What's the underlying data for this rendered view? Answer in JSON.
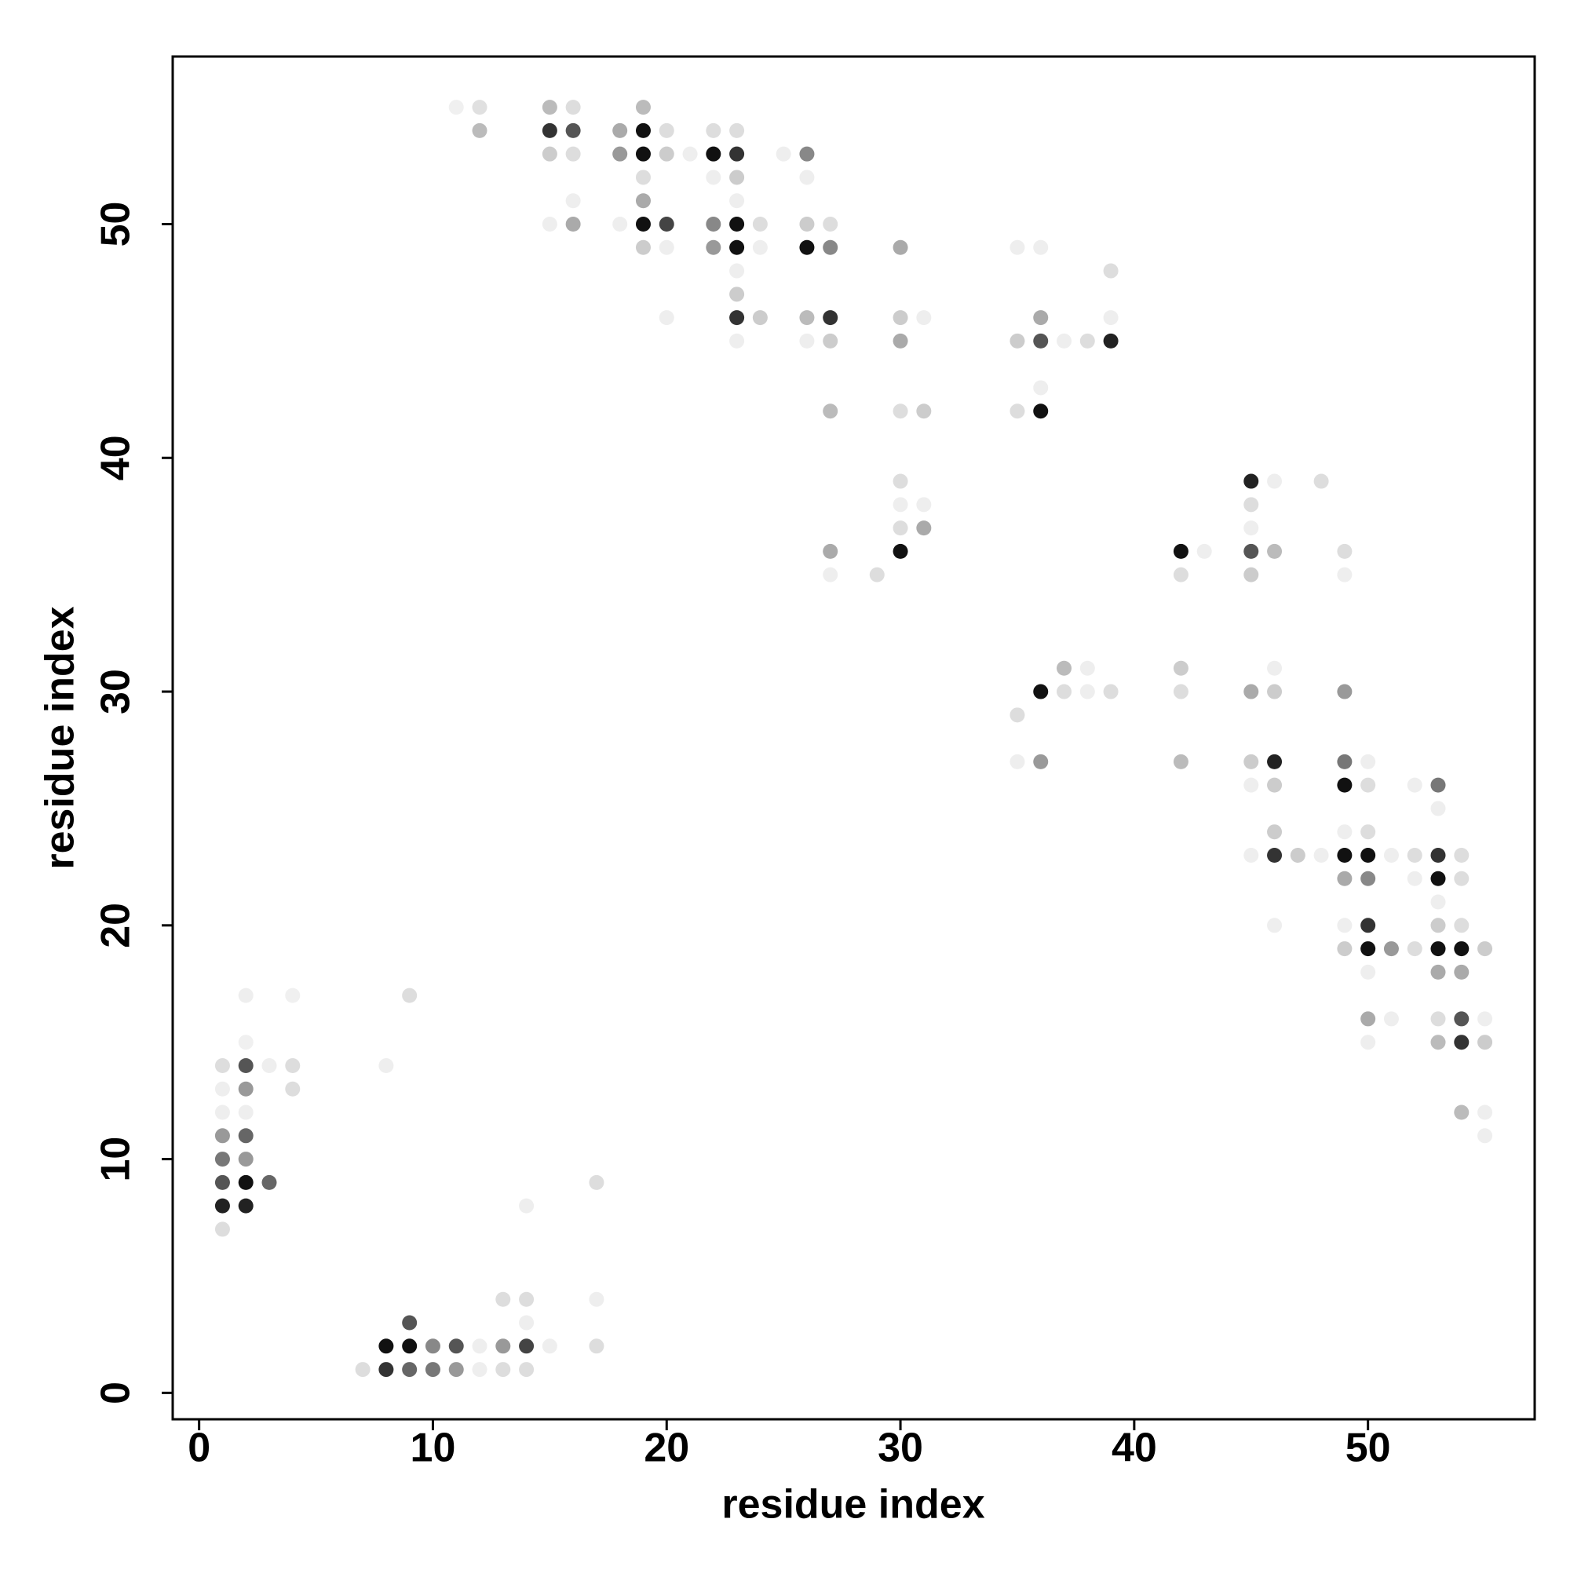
{
  "chart_data": {
    "type": "scatter",
    "xlabel": "residue index",
    "ylabel": "residue index",
    "xlim": [
      -1.13,
      57.13
    ],
    "ylim": [
      -1.13,
      57.17
    ],
    "xticks": [
      0,
      10,
      20,
      30,
      40,
      50
    ],
    "yticks": [
      0,
      10,
      20,
      30,
      40,
      50
    ],
    "series": [
      {
        "x": [
          11,
          12,
          15,
          16,
          19,
          12,
          15,
          16,
          18,
          19,
          20,
          22,
          23,
          15,
          16,
          18,
          19,
          20,
          21,
          22,
          23,
          25,
          26,
          19,
          22,
          23,
          26,
          16,
          19,
          23,
          15,
          16,
          18,
          19,
          20,
          22,
          23,
          24,
          26,
          27,
          19,
          20,
          22,
          23,
          24,
          26,
          27,
          30,
          35,
          36,
          23,
          39,
          23,
          20,
          23,
          24,
          26,
          27,
          30,
          31,
          36,
          39,
          23,
          26,
          27,
          30,
          35,
          36,
          37,
          38,
          39,
          36,
          27,
          30,
          31,
          35,
          36,
          30,
          45,
          46,
          48,
          30,
          31,
          45,
          30,
          31,
          45,
          27,
          30,
          42,
          43,
          45,
          46,
          49,
          27,
          29,
          42,
          45,
          49,
          37,
          38,
          42,
          46,
          36,
          37,
          38,
          39,
          42,
          45,
          46,
          49,
          35,
          35,
          36,
          42,
          45,
          46,
          49,
          50,
          45,
          46,
          49,
          50,
          52,
          53,
          53,
          46,
          49,
          50,
          45,
          46,
          47,
          48,
          49,
          50,
          51,
          52,
          53,
          54,
          49,
          50,
          52,
          53,
          54,
          53,
          46,
          49,
          50,
          53,
          54,
          49,
          50,
          51,
          52,
          53,
          54,
          55,
          50,
          53,
          54,
          2,
          4,
          9,
          50,
          51,
          53,
          54,
          55,
          2,
          50,
          53,
          54,
          55,
          1,
          2,
          3,
          4,
          8,
          1,
          2,
          4,
          1,
          2,
          54,
          55,
          1,
          2,
          55,
          1,
          2,
          1,
          2,
          3,
          17,
          1,
          2,
          14,
          1,
          13,
          14,
          17,
          9,
          14,
          8,
          9,
          10,
          11,
          12,
          13,
          14,
          15,
          17,
          7,
          8,
          9,
          10,
          11,
          12,
          13,
          14
        ],
        "values": [
          55,
          55,
          55,
          55,
          55,
          54,
          54,
          54,
          54,
          54,
          54,
          54,
          54,
          53,
          53,
          53,
          53,
          53,
          53,
          53,
          53,
          53,
          53,
          52,
          52,
          52,
          52,
          51,
          51,
          51,
          50,
          50,
          50,
          50,
          50,
          50,
          50,
          50,
          50,
          50,
          49,
          49,
          49,
          49,
          49,
          49,
          49,
          49,
          49,
          49,
          48,
          48,
          47,
          46,
          46,
          46,
          46,
          46,
          46,
          46,
          46,
          46,
          45,
          45,
          45,
          45,
          45,
          45,
          45,
          45,
          45,
          43,
          42,
          42,
          42,
          42,
          42,
          39,
          39,
          39,
          39,
          38,
          38,
          38,
          37,
          37,
          37,
          36,
          36,
          36,
          36,
          36,
          36,
          36,
          35,
          35,
          35,
          35,
          35,
          31,
          31,
          31,
          31,
          30,
          30,
          30,
          30,
          30,
          30,
          30,
          30,
          29,
          27,
          27,
          27,
          27,
          27,
          27,
          27,
          26,
          26,
          26,
          26,
          26,
          26,
          25,
          24,
          24,
          24,
          23,
          23,
          23,
          23,
          23,
          23,
          23,
          23,
          23,
          23,
          22,
          22,
          22,
          22,
          22,
          21,
          20,
          20,
          20,
          20,
          20,
          19,
          19,
          19,
          19,
          19,
          19,
          19,
          18,
          18,
          18,
          17,
          17,
          17,
          16,
          16,
          16,
          16,
          16,
          15,
          15,
          15,
          15,
          15,
          14,
          14,
          14,
          14,
          14,
          13,
          13,
          13,
          12,
          12,
          12,
          12,
          11,
          11,
          11,
          10,
          10,
          9,
          9,
          9,
          9,
          8,
          8,
          8,
          7,
          4,
          4,
          4,
          3,
          3,
          2,
          2,
          2,
          2,
          2,
          2,
          2,
          2,
          2,
          1,
          1,
          1,
          1,
          1,
          1,
          1,
          1
        ],
        "colors": [
          "#f0f0f0",
          "#e0e0e0",
          "#bbbbbb",
          "#dddddd",
          "#bbbbbb",
          "#bbbbbb",
          "#333333",
          "#555555",
          "#aaaaaa",
          "#111111",
          "#dddddd",
          "#dddddd",
          "#dddddd",
          "#cccccc",
          "#dddddd",
          "#999999",
          "#111111",
          "#cccccc",
          "#eeeeee",
          "#111111",
          "#333333",
          "#eeeeee",
          "#888888",
          "#dddddd",
          "#eeeeee",
          "#cccccc",
          "#eeeeee",
          "#eeeeee",
          "#aaaaaa",
          "#eeeeee",
          "#eeeeee",
          "#aaaaaa",
          "#eeeeee",
          "#111111",
          "#444444",
          "#888888",
          "#111111",
          "#dddddd",
          "#cccccc",
          "#dddddd",
          "#cccccc",
          "#eeeeee",
          "#999999",
          "#111111",
          "#eeeeee",
          "#111111",
          "#888888",
          "#aaaaaa",
          "#eeeeee",
          "#eeeeee",
          "#eeeeee",
          "#dddddd",
          "#cccccc",
          "#eeeeee",
          "#333333",
          "#cccccc",
          "#bbbbbb",
          "#333333",
          "#cccccc",
          "#eeeeee",
          "#aaaaaa",
          "#eeeeee",
          "#eeeeee",
          "#eeeeee",
          "#cccccc",
          "#aaaaaa",
          "#cccccc",
          "#555555",
          "#eeeeee",
          "#dddddd",
          "#222222",
          "#eeeeee",
          "#bbbbbb",
          "#dddddd",
          "#cccccc",
          "#dddddd",
          "#111111",
          "#dddddd",
          "#222222",
          "#eeeeee",
          "#dddddd",
          "#eeeeee",
          "#eeeeee",
          "#dddddd",
          "#dddddd",
          "#aaaaaa",
          "#eeeeee",
          "#aaaaaa",
          "#111111",
          "#111111",
          "#eeeeee",
          "#555555",
          "#bbbbbb",
          "#dddddd",
          "#eeeeee",
          "#dddddd",
          "#dddddd",
          "#cccccc",
          "#eeeeee",
          "#bbbbbb",
          "#eeeeee",
          "#cccccc",
          "#eeeeee",
          "#111111",
          "#dddddd",
          "#eeeeee",
          "#dddddd",
          "#dddddd",
          "#aaaaaa",
          "#cccccc",
          "#999999",
          "#dddddd",
          "#eeeeee",
          "#999999",
          "#bbbbbb",
          "#cccccc",
          "#222222",
          "#777777",
          "#eeeeee",
          "#eeeeee",
          "#cccccc",
          "#111111",
          "#dddddd",
          "#eeeeee",
          "#777777",
          "#eeeeee",
          "#cccccc",
          "#eeeeee",
          "#dddddd",
          "#eeeeee",
          "#333333",
          "#cccccc",
          "#eeeeee",
          "#111111",
          "#111111",
          "#eeeeee",
          "#dddddd",
          "#333333",
          "#dddddd",
          "#aaaaaa",
          "#888888",
          "#eeeeee",
          "#111111",
          "#dddddd",
          "#eeeeee",
          "#eeeeee",
          "#eeeeee",
          "#333333",
          "#cccccc",
          "#dddddd",
          "#cccccc",
          "#111111",
          "#999999",
          "#dddddd",
          "#111111",
          "#111111",
          "#cccccc",
          "#eeeeee",
          "#aaaaaa",
          "#aaaaaa",
          "#eeeeee",
          "#f0f0f0",
          "#dddddd",
          "#aaaaaa",
          "#eeeeee",
          "#dddddd",
          "#555555",
          "#eeeeee",
          "#f0f0f0",
          "#eeeeee",
          "#bbbbbb",
          "#333333",
          "#cccccc",
          "#dddddd",
          "#555555",
          "#eeeeee",
          "#dddddd",
          "#eeeeee",
          "#eeeeee",
          "#999999",
          "#dddddd",
          "#eeeeee",
          "#eeeeee",
          "#bbbbbb",
          "#eeeeee",
          "#999999",
          "#666666",
          "#eeeeee",
          "#777777",
          "#999999",
          "#555555",
          "#111111",
          "#666666",
          "#dddddd",
          "#222222",
          "#222222",
          "#eeeeee",
          "#dddddd",
          "#dddddd",
          "#dddddd",
          "#eeeeee",
          "#555555",
          "#eeeeee",
          "#111111",
          "#111111",
          "#888888",
          "#555555",
          "#eeeeee",
          "#999999",
          "#444444",
          "#eeeeee",
          "#dddddd",
          "#dddddd",
          "#333333",
          "#666666",
          "#777777",
          "#999999",
          "#eeeeee",
          "#dddddd",
          "#dddddd"
        ]
      }
    ]
  }
}
